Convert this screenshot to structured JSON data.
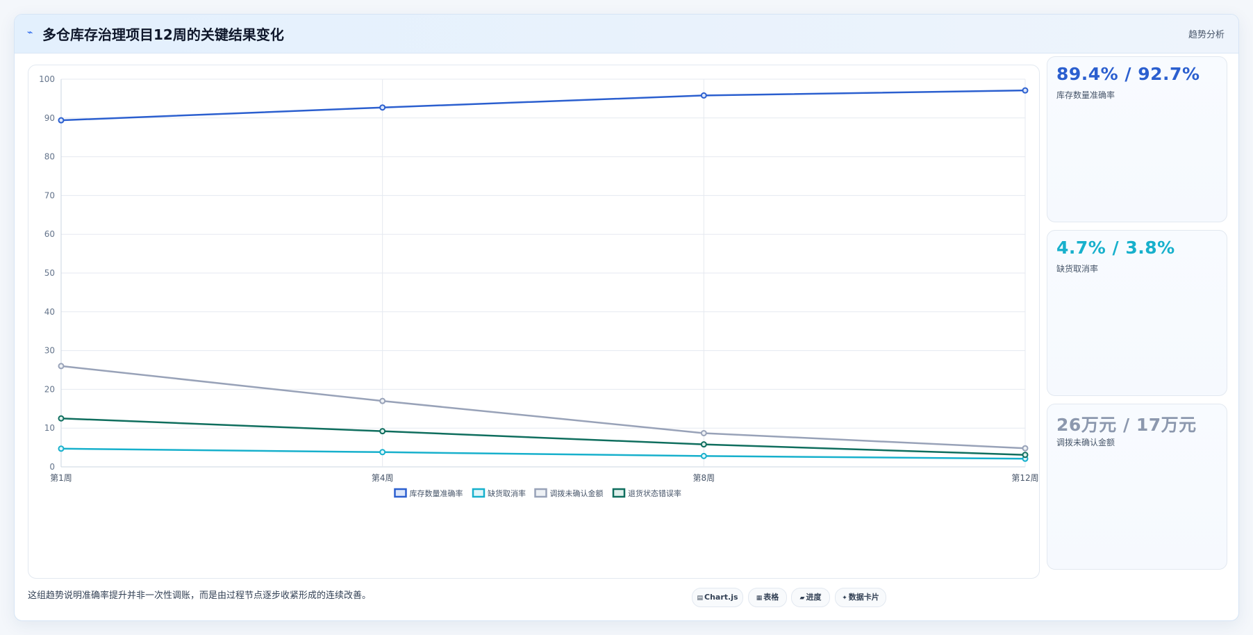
{
  "header": {
    "icon": "chart-trend-icon",
    "title": "多仓库存治理项目12周的关键结果变化",
    "right_label": "趋势分析"
  },
  "chart_data": {
    "type": "line",
    "categories": [
      "第1周",
      "第4周",
      "第8周",
      "第12周"
    ],
    "ylim": [
      0,
      100
    ],
    "yticks": [
      0,
      10,
      20,
      30,
      40,
      50,
      60,
      70,
      80,
      90,
      100
    ],
    "grid": true,
    "legend_position": "bottom",
    "title": "",
    "xlabel": "",
    "ylabel": "",
    "series": [
      {
        "name": "库存数量准确率",
        "values": [
          89.4,
          92.7,
          95.8,
          97.1
        ],
        "color": "#2b5fcf",
        "fill": "#dbe6fb"
      },
      {
        "name": "缺货取消率",
        "values": [
          4.7,
          3.8,
          2.8,
          2.1
        ],
        "color": "#17b0cc",
        "fill": "#e0f6fa"
      },
      {
        "name": "调拨未确认金额",
        "values": [
          26,
          17,
          8.7,
          4.8
        ],
        "color": "#98a2b8",
        "fill": "#eef1f5"
      },
      {
        "name": "退货状态错误率",
        "values": [
          12.5,
          9.2,
          5.8,
          3.1
        ],
        "color": "#0f6e5e",
        "fill": "#dff0ec"
      }
    ]
  },
  "kpis": [
    {
      "value": "89.4% / 92.7%",
      "label": "库存数量准确率",
      "color": "#2b5fcf"
    },
    {
      "value": "4.7% / 3.8%",
      "label": "缺货取消率",
      "color": "#17b0cc"
    },
    {
      "value": "26万元 / 17万元",
      "label": "调拨未确认金额",
      "color": "#8c98ae"
    }
  ],
  "footer": {
    "note": "这组趋势说明准确率提升并非一次性调账，而是由过程节点逐步收紧形成的连续改善。",
    "chips": [
      {
        "icon": "▤",
        "label": "Chart.js"
      },
      {
        "icon": "▦",
        "label": "表格"
      },
      {
        "icon": "▰",
        "label": "进度"
      },
      {
        "icon": "✦",
        "label": "数据卡片"
      }
    ]
  }
}
